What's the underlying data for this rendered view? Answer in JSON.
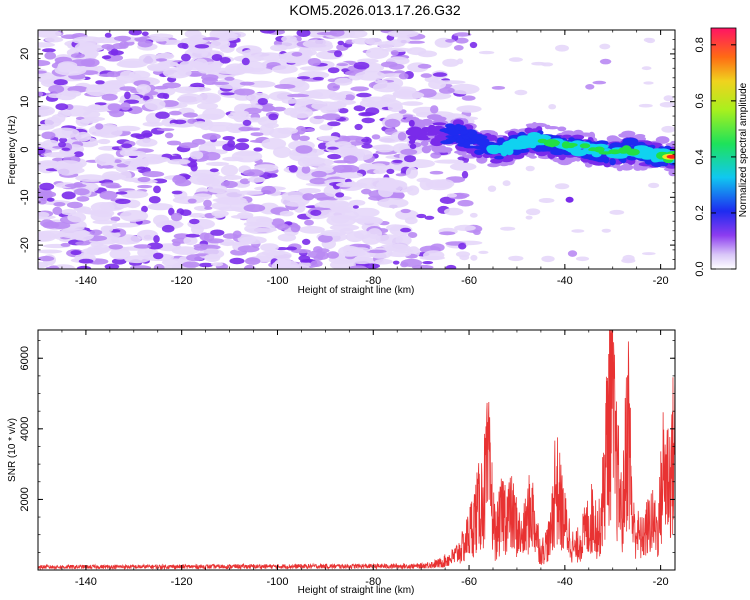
{
  "title": "KOM5.2026.013.17.26.G32",
  "colors": {
    "line": "#e83232",
    "purple_light": "#e6d7fa",
    "purple_mid": "#b98af3",
    "purple_dark": "#7a2bea",
    "blue": "#1e2bf0",
    "cyan": "#10d2f0",
    "green": "#22e045",
    "red": "#ff1e1e"
  },
  "colorbar": {
    "label": "Normalized spectral amplitude",
    "ticks": [
      "0.0",
      "0.2",
      "0.4",
      "0.6",
      "0.8"
    ],
    "tick_values": [
      0.0,
      0.2,
      0.4,
      0.6,
      0.8
    ],
    "range": [
      0,
      0.86
    ]
  },
  "chart_data": [
    {
      "type": "heatmap",
      "title": "KOM5.2026.013.17.26.G32",
      "xlabel": "Height of straight line (km)",
      "ylabel": "Frequency (Hz)",
      "xlim": [
        -150,
        -17
      ],
      "ylim": [
        -25,
        25
      ],
      "x_ticks": [
        -140,
        -120,
        -100,
        -80,
        -60,
        -40,
        -20
      ],
      "y_ticks": [
        -20,
        -10,
        0,
        10,
        20
      ],
      "x_tick_labels": [
        "-140",
        "-120",
        "-100",
        "-80",
        "-60",
        "-40",
        "-20"
      ],
      "y_tick_labels": [
        "-20",
        "-10",
        "0",
        "10",
        "20"
      ],
      "colorbar_label": "Normalized spectral amplitude",
      "noise_region": {
        "x_range": [
          -150,
          -65
        ],
        "f_range": [
          -25,
          25
        ],
        "amplitude_range": [
          0.02,
          0.1
        ]
      },
      "signal_ridge": [
        {
          "x": -72,
          "f": 3,
          "amp": 0.1
        },
        {
          "x": -66,
          "f": 3.5,
          "amp": 0.12
        },
        {
          "x": -62,
          "f": 3,
          "amp": 0.18
        },
        {
          "x": -58,
          "f": 1,
          "amp": 0.22
        },
        {
          "x": -54,
          "f": 0,
          "amp": 0.25
        },
        {
          "x": -50,
          "f": 1,
          "amp": 0.27
        },
        {
          "x": -46,
          "f": 2,
          "amp": 0.3
        },
        {
          "x": -42,
          "f": 1,
          "amp": 0.32
        },
        {
          "x": -38,
          "f": 0.5,
          "amp": 0.35
        },
        {
          "x": -34,
          "f": 0,
          "amp": 0.38
        },
        {
          "x": -30,
          "f": -1,
          "amp": 0.35
        },
        {
          "x": -26,
          "f": 0,
          "amp": 0.3
        },
        {
          "x": -22,
          "f": -1,
          "amp": 0.4
        },
        {
          "x": -18,
          "f": -1.5,
          "amp": 0.86
        }
      ]
    },
    {
      "type": "line",
      "xlabel": "Height of straight line (km)",
      "ylabel": "SNR (10 * v/v)",
      "xlim": [
        -150,
        -17
      ],
      "ylim": [
        0,
        6800
      ],
      "x_ticks": [
        -140,
        -120,
        -100,
        -80,
        -60,
        -40,
        -20
      ],
      "y_ticks": [
        2000,
        4000,
        6000
      ],
      "x_tick_labels": [
        "-140",
        "-120",
        "-100",
        "-80",
        "-60",
        "-40",
        "-20"
      ],
      "y_tick_labels": [
        "2000",
        "4000",
        "6000"
      ],
      "series_anchors": [
        [
          -150,
          100
        ],
        [
          -70,
          130
        ],
        [
          -66,
          250
        ],
        [
          -63,
          500
        ],
        [
          -61,
          900
        ],
        [
          -59,
          1800
        ],
        [
          -57,
          2700
        ],
        [
          -56,
          3800
        ],
        [
          -54.5,
          1200
        ],
        [
          -53,
          2100
        ],
        [
          -51,
          2000
        ],
        [
          -49,
          1100
        ],
        [
          -47,
          2300
        ],
        [
          -45,
          600
        ],
        [
          -43,
          1200
        ],
        [
          -42,
          3200
        ],
        [
          -40,
          1700
        ],
        [
          -38,
          700
        ],
        [
          -36,
          1300
        ],
        [
          -34,
          2000
        ],
        [
          -33,
          1300
        ],
        [
          -32,
          2600
        ],
        [
          -31,
          5200
        ],
        [
          -30.3,
          6800
        ],
        [
          -29.5,
          4200
        ],
        [
          -28,
          1800
        ],
        [
          -26.8,
          5700
        ],
        [
          -25.8,
          1600
        ],
        [
          -24,
          1100
        ],
        [
          -22,
          1800
        ],
        [
          -20.5,
          1400
        ],
        [
          -19.5,
          3600
        ],
        [
          -18,
          3400
        ],
        [
          -17,
          4700
        ]
      ]
    }
  ]
}
